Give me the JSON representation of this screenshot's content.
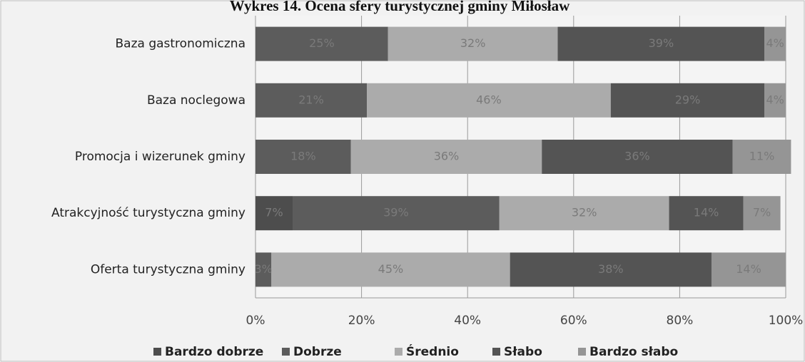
{
  "chart_data": {
    "type": "stacked_barh",
    "title": "Wykres 14. Ocena sfery turystycznej gminy Miłosław",
    "categories": [
      "Baza gastronomiczna",
      "Baza noclegowa",
      "Promocja i wizerunek gminy",
      "Atrakcyjność turystyczna gminy",
      "Oferta turystyczna gminy"
    ],
    "series": [
      {
        "name": "Bardzo dobrze",
        "color": "#4d4d4d",
        "values": [
          0,
          0,
          0,
          7,
          0
        ],
        "value_labels": [
          null,
          null,
          null,
          "7%",
          null
        ]
      },
      {
        "name": "Dobrze",
        "color": "#5c5c5c",
        "values": [
          25,
          21,
          18,
          39,
          3
        ],
        "value_labels": [
          "25%",
          "21%",
          "18%",
          "39%",
          "3%"
        ]
      },
      {
        "name": "Średnio",
        "color": "#ababab",
        "values": [
          32,
          46,
          36,
          32,
          45
        ],
        "value_labels": [
          "32%",
          "46%",
          "36%",
          "32%",
          "45%"
        ]
      },
      {
        "name": "Słabo",
        "color": "#545454",
        "values": [
          39,
          29,
          36,
          14,
          38
        ],
        "value_labels": [
          "39%",
          "29%",
          "36%",
          "14%",
          "38%"
        ]
      },
      {
        "name": "Bardzo słabo",
        "color": "#959595",
        "values": [
          4,
          4,
          11,
          7,
          14
        ],
        "value_labels": [
          "4%",
          "4%",
          "11%",
          "7%",
          "14%"
        ]
      }
    ],
    "xlim": [
      0,
      100
    ],
    "xticks": [
      {
        "value": 0,
        "label": "0%"
      },
      {
        "value": 20,
        "label": "20%"
      },
      {
        "value": 40,
        "label": "40%"
      },
      {
        "value": 60,
        "label": "60%"
      },
      {
        "value": 80,
        "label": "80%"
      },
      {
        "value": 100,
        "label": "100%"
      }
    ],
    "grid": true,
    "legend": "bottom"
  }
}
